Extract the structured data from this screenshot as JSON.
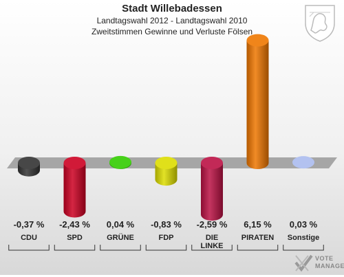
{
  "header": {
    "title": "Stadt Willebadessen",
    "subtitle1": "Landtagswahl 2012 - Landtagswahl 2010",
    "subtitle2": "Zweitstimmen Gewinne und Verluste Fölsen"
  },
  "logo": {
    "line1": "VOTE",
    "line2": "MANAGER"
  },
  "chart_data": {
    "type": "bar",
    "categories": [
      "CDU",
      "SPD",
      "GRÜNE",
      "FDP",
      "DIE LINKE",
      "PIRATEN",
      "Sonstige"
    ],
    "values": [
      -0.37,
      -2.43,
      0.04,
      -0.83,
      -2.59,
      6.15,
      0.03
    ],
    "value_labels": [
      "-0,37 %",
      "-2,43 %",
      "0,04 %",
      "-0,83 %",
      "-2,59 %",
      "6,15 %",
      "0,03 %"
    ],
    "colors": [
      "#333333",
      "#cc0022",
      "#33cc00",
      "#dddd00",
      "#bb1144",
      "#ee7700",
      "#aabbee"
    ],
    "title": "Stadt Willebadessen",
    "xlabel": "",
    "ylabel": "",
    "ylim": [
      -2.7,
      6.3
    ],
    "grid": false,
    "legend": "none"
  }
}
